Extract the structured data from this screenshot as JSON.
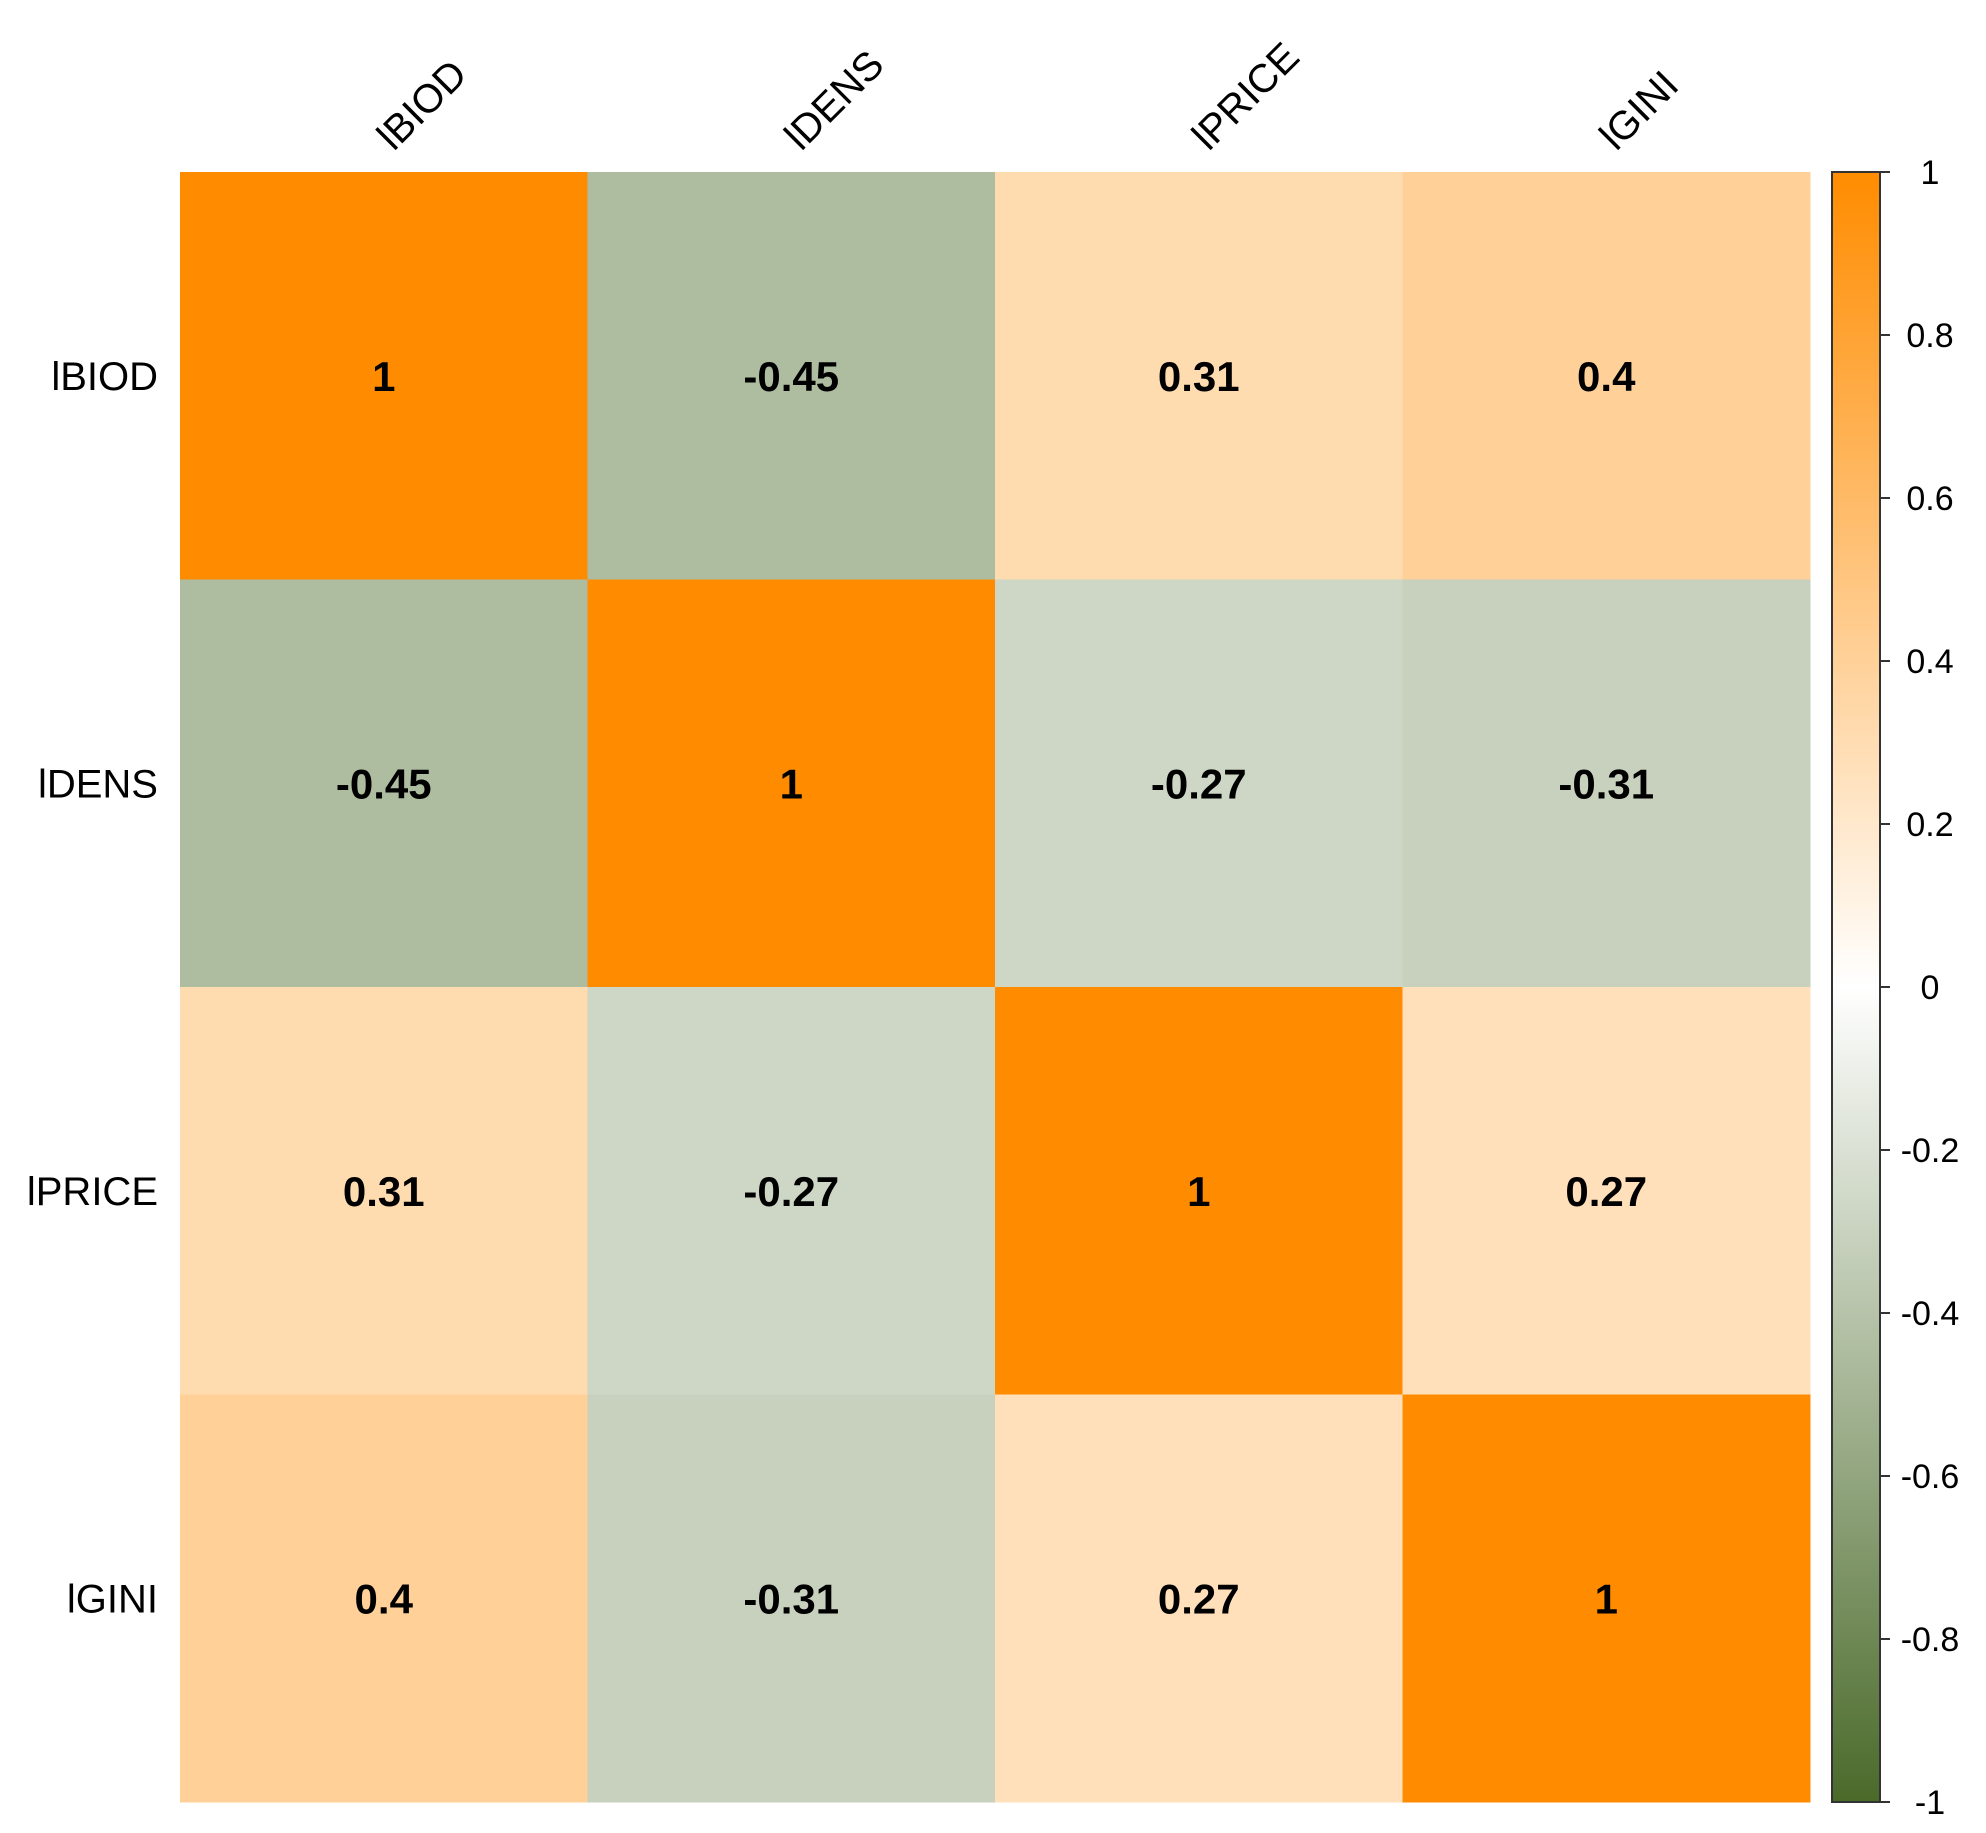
{
  "chart_data": {
    "type": "heatmap",
    "title": "",
    "row_labels": [
      "lBIOD",
      "lDENS",
      "lPRICE",
      "lGINI"
    ],
    "col_labels": [
      "lBIOD",
      "lDENS",
      "lPRICE",
      "lGINI"
    ],
    "matrix": [
      [
        1,
        -0.45,
        0.31,
        0.4
      ],
      [
        -0.45,
        1,
        -0.27,
        -0.31
      ],
      [
        0.31,
        -0.27,
        1,
        0.27
      ],
      [
        0.4,
        -0.31,
        0.27,
        1
      ]
    ],
    "cell_labels": [
      [
        "1",
        "-0.45",
        "0.31",
        "0.4"
      ],
      [
        "-0.45",
        "1",
        "-0.27",
        "-0.31"
      ],
      [
        "0.31",
        "-0.27",
        "1",
        "0.27"
      ],
      [
        "0.4",
        "-0.31",
        "0.27",
        "1"
      ]
    ],
    "color_scale": {
      "range": [
        -1,
        1
      ],
      "low_color": "#4a6a2a",
      "mid_color": "#ffffff",
      "high_color": "#ff8c00",
      "ticks": [
        1,
        0.8,
        0.6,
        0.4,
        0.2,
        0,
        -0.2,
        -0.4,
        -0.6,
        -0.8,
        -1
      ],
      "tick_labels": [
        "1",
        "0.8",
        "0.6",
        "0.4",
        "0.2",
        "0",
        "-0.2",
        "-0.4",
        "-0.6",
        "-0.8",
        "-1"
      ]
    },
    "legend_position": "right"
  }
}
